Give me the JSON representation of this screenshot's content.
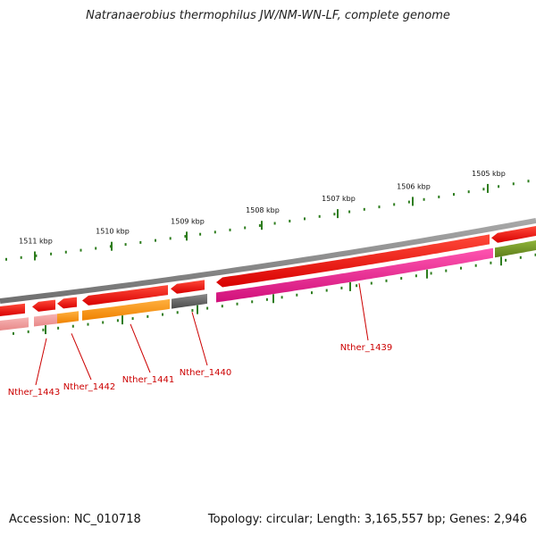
{
  "title": "Natranaerobius thermophilus JW/NM-WN-LF, complete genome",
  "footer": {
    "accession": "Accession: NC_010718",
    "summary": "Topology: circular; Length: 3,165,557 bp; Genes: 2,946"
  },
  "colors": {
    "backbone": "#808080",
    "ruler_ticks": "#2e7d1e",
    "gene_label": "#cc0000",
    "forward_gene": "#ff0000",
    "cds_magenta": "#ee1c8c",
    "cds_orange": "#ff8c00",
    "cds_gray": "#707070",
    "cds_pink": "#f0a0a0",
    "cds_olive": "#6b8e23"
  },
  "ruler": {
    "labels": [
      "1511 kbp",
      "1510 kbp",
      "1509 kbp",
      "1508 kbp",
      "1507 kbp",
      "1506 kbp",
      "1505 kbp"
    ]
  },
  "genes": {
    "labels": [
      "Nther_1443",
      "Nther_1442",
      "Nther_1441",
      "Nther_1440",
      "Nther_1439"
    ]
  }
}
